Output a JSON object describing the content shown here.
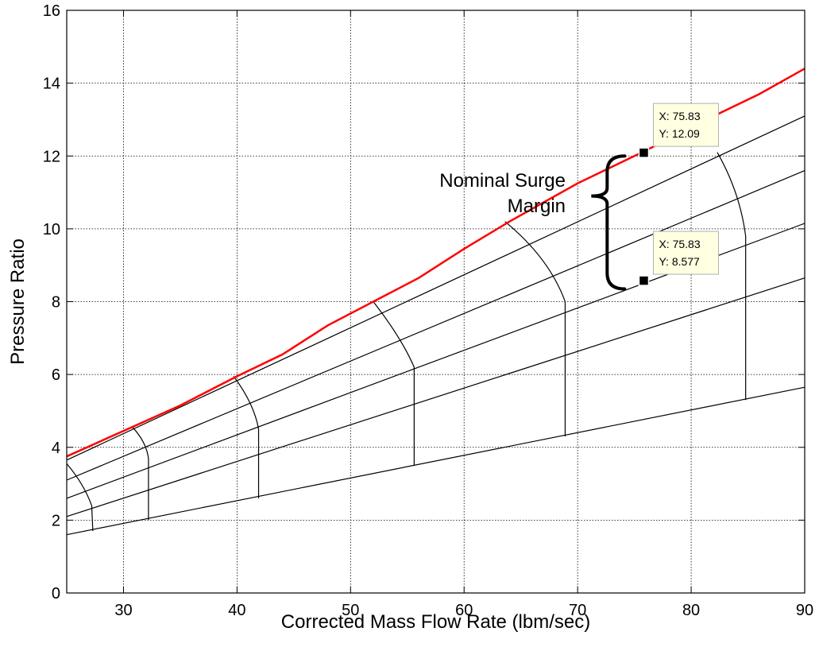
{
  "chart_data": {
    "type": "line",
    "title": "",
    "xlabel": "Corrected Mass Flow Rate (lbm/sec)",
    "ylabel": "Pressure Ratio",
    "xlim": [
      25,
      90
    ],
    "ylim": [
      0,
      16
    ],
    "xticks": [
      30,
      40,
      50,
      60,
      70,
      80,
      90
    ],
    "yticks": [
      0,
      2,
      4,
      6,
      8,
      10,
      12,
      14,
      16
    ],
    "grid": true,
    "colors": {
      "surge_line": "#ff0000",
      "speed_lines": "#000000",
      "datatip_bg": "#ffffe1"
    },
    "surge_line": {
      "points": [
        [
          25,
          3.75
        ],
        [
          30,
          4.45
        ],
        [
          35,
          5.15
        ],
        [
          40,
          5.95
        ],
        [
          44,
          6.55
        ],
        [
          48,
          7.35
        ],
        [
          52,
          8.0
        ],
        [
          56,
          8.65
        ],
        [
          60,
          9.45
        ],
        [
          64,
          10.2
        ],
        [
          70,
          11.25
        ],
        [
          76,
          12.15
        ],
        [
          82,
          13.1
        ],
        [
          86,
          13.7
        ],
        [
          90,
          14.4
        ]
      ]
    },
    "operating_lines": [
      {
        "values": [
          [
            25,
            3.65
          ],
          [
            90,
            13.1
          ]
        ]
      },
      {
        "values": [
          [
            25,
            3.1
          ],
          [
            90,
            11.6
          ]
        ]
      },
      {
        "values": [
          [
            25,
            2.6
          ],
          [
            90,
            10.15
          ]
        ]
      },
      {
        "values": [
          [
            25,
            2.1
          ],
          [
            90,
            8.65
          ]
        ]
      },
      {
        "values": [
          [
            25,
            1.6
          ],
          [
            90,
            5.65
          ]
        ]
      }
    ],
    "speed_lines": [
      {
        "values": [
          [
            25,
            3.55
          ],
          [
            26.5,
            3.0
          ],
          [
            27.2,
            2.4
          ],
          [
            27.3,
            1.7
          ]
        ]
      },
      {
        "values": [
          [
            30.8,
            4.55
          ],
          [
            32.0,
            4.15
          ],
          [
            32.2,
            3.7
          ],
          [
            32.2,
            2.0
          ]
        ]
      },
      {
        "values": [
          [
            39.7,
            5.95
          ],
          [
            41.5,
            5.2
          ],
          [
            41.9,
            4.5
          ],
          [
            41.9,
            2.6
          ]
        ]
      },
      {
        "values": [
          [
            52.0,
            8.0
          ],
          [
            54.5,
            7.0
          ],
          [
            55.6,
            6.2
          ],
          [
            55.6,
            3.5
          ]
        ]
      },
      {
        "values": [
          [
            63.6,
            10.2
          ],
          [
            67.5,
            9.2
          ],
          [
            68.9,
            8.0
          ],
          [
            68.9,
            4.3
          ]
        ]
      },
      {
        "values": [
          [
            82.3,
            12.1
          ],
          [
            84.3,
            11.0
          ],
          [
            84.8,
            9.8
          ],
          [
            84.8,
            5.3
          ]
        ]
      }
    ],
    "datatips": [
      {
        "x": 75.83,
        "y": 12.09,
        "x_text": "X: 75.83",
        "y_text": "Y: 12.09"
      },
      {
        "x": 75.83,
        "y": 8.577,
        "x_text": "X: 75.83",
        "y_text": "Y: 8.577"
      }
    ],
    "annotation": {
      "line1": "Nominal Surge",
      "line2": "Margin"
    }
  }
}
